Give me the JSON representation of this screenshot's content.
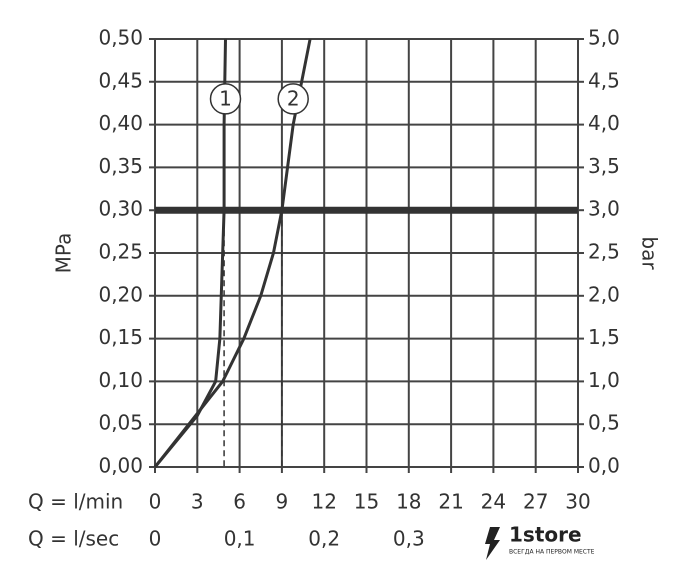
{
  "chart_data": {
    "type": "line",
    "y_label": "MPa",
    "y2_label": "bar",
    "x_label": "Q = l/min",
    "x2_label": "Q = l/sec",
    "xlim": [
      0,
      30
    ],
    "xticks": [
      0,
      3,
      6,
      9,
      12,
      15,
      18,
      21,
      24,
      27,
      30
    ],
    "x2lim": [
      0,
      0.5
    ],
    "x2ticks": [
      0,
      {
        "value": 0.1,
        "label": "0,1"
      },
      {
        "value": 0.2,
        "label": "0,2"
      },
      {
        "value": 0.3,
        "label": "0,3"
      }
    ],
    "ylim": [
      0,
      0.5
    ],
    "yticks": [
      {
        "value": 0,
        "label": "0,00"
      },
      {
        "value": 0.05,
        "label": "0,05"
      },
      {
        "value": 0.1,
        "label": "0,10"
      },
      {
        "value": 0.15,
        "label": "0,15"
      },
      {
        "value": 0.2,
        "label": "0,20"
      },
      {
        "value": 0.25,
        "label": "0,25"
      },
      {
        "value": 0.3,
        "label": "0,30"
      },
      {
        "value": 0.35,
        "label": "0,35"
      },
      {
        "value": 0.4,
        "label": "0,40"
      },
      {
        "value": 0.45,
        "label": "0,45"
      },
      {
        "value": 0.5,
        "label": "0,50"
      }
    ],
    "y2lim": [
      0,
      5
    ],
    "y2ticks": [
      {
        "value": 0,
        "label": "0,0"
      },
      {
        "value": 0.5,
        "label": "0,5"
      },
      {
        "value": 1,
        "label": "1,0"
      },
      {
        "value": 1.5,
        "label": "1,5"
      },
      {
        "value": 2,
        "label": "2,0"
      },
      {
        "value": 2.5,
        "label": "2,5"
      },
      {
        "value": 3,
        "label": "3,0"
      },
      {
        "value": 3.5,
        "label": "3,5"
      },
      {
        "value": 4,
        "label": "4,0"
      },
      {
        "value": 4.5,
        "label": "4,5"
      },
      {
        "value": 5,
        "label": "5,0"
      }
    ],
    "grid": true,
    "reference_line": {
      "y": 0.3,
      "x": [
        4.9,
        9
      ]
    },
    "series": [
      {
        "name": "1",
        "color": "#333333",
        "label_at": [
          5,
          0.43
        ],
        "x": [
          0,
          3,
          4.3,
          4.6,
          4.8,
          4.9,
          4.9,
          5
        ],
        "values": [
          0,
          0.06,
          0.1,
          0.15,
          0.25,
          0.3,
          0.4,
          0.5
        ]
      },
      {
        "name": "2",
        "color": "#333333",
        "label_at": [
          9.8,
          0.43
        ],
        "x": [
          0,
          4.8,
          6.3,
          7.5,
          8.4,
          9,
          9.8,
          11
        ],
        "values": [
          0,
          0.1,
          0.15,
          0.2,
          0.25,
          0.3,
          0.4,
          0.5
        ]
      }
    ]
  },
  "watermark": {
    "brand": "1store",
    "slogan": "ВСЕГДА НА ПЕРВОМ МЕСТЕ"
  }
}
